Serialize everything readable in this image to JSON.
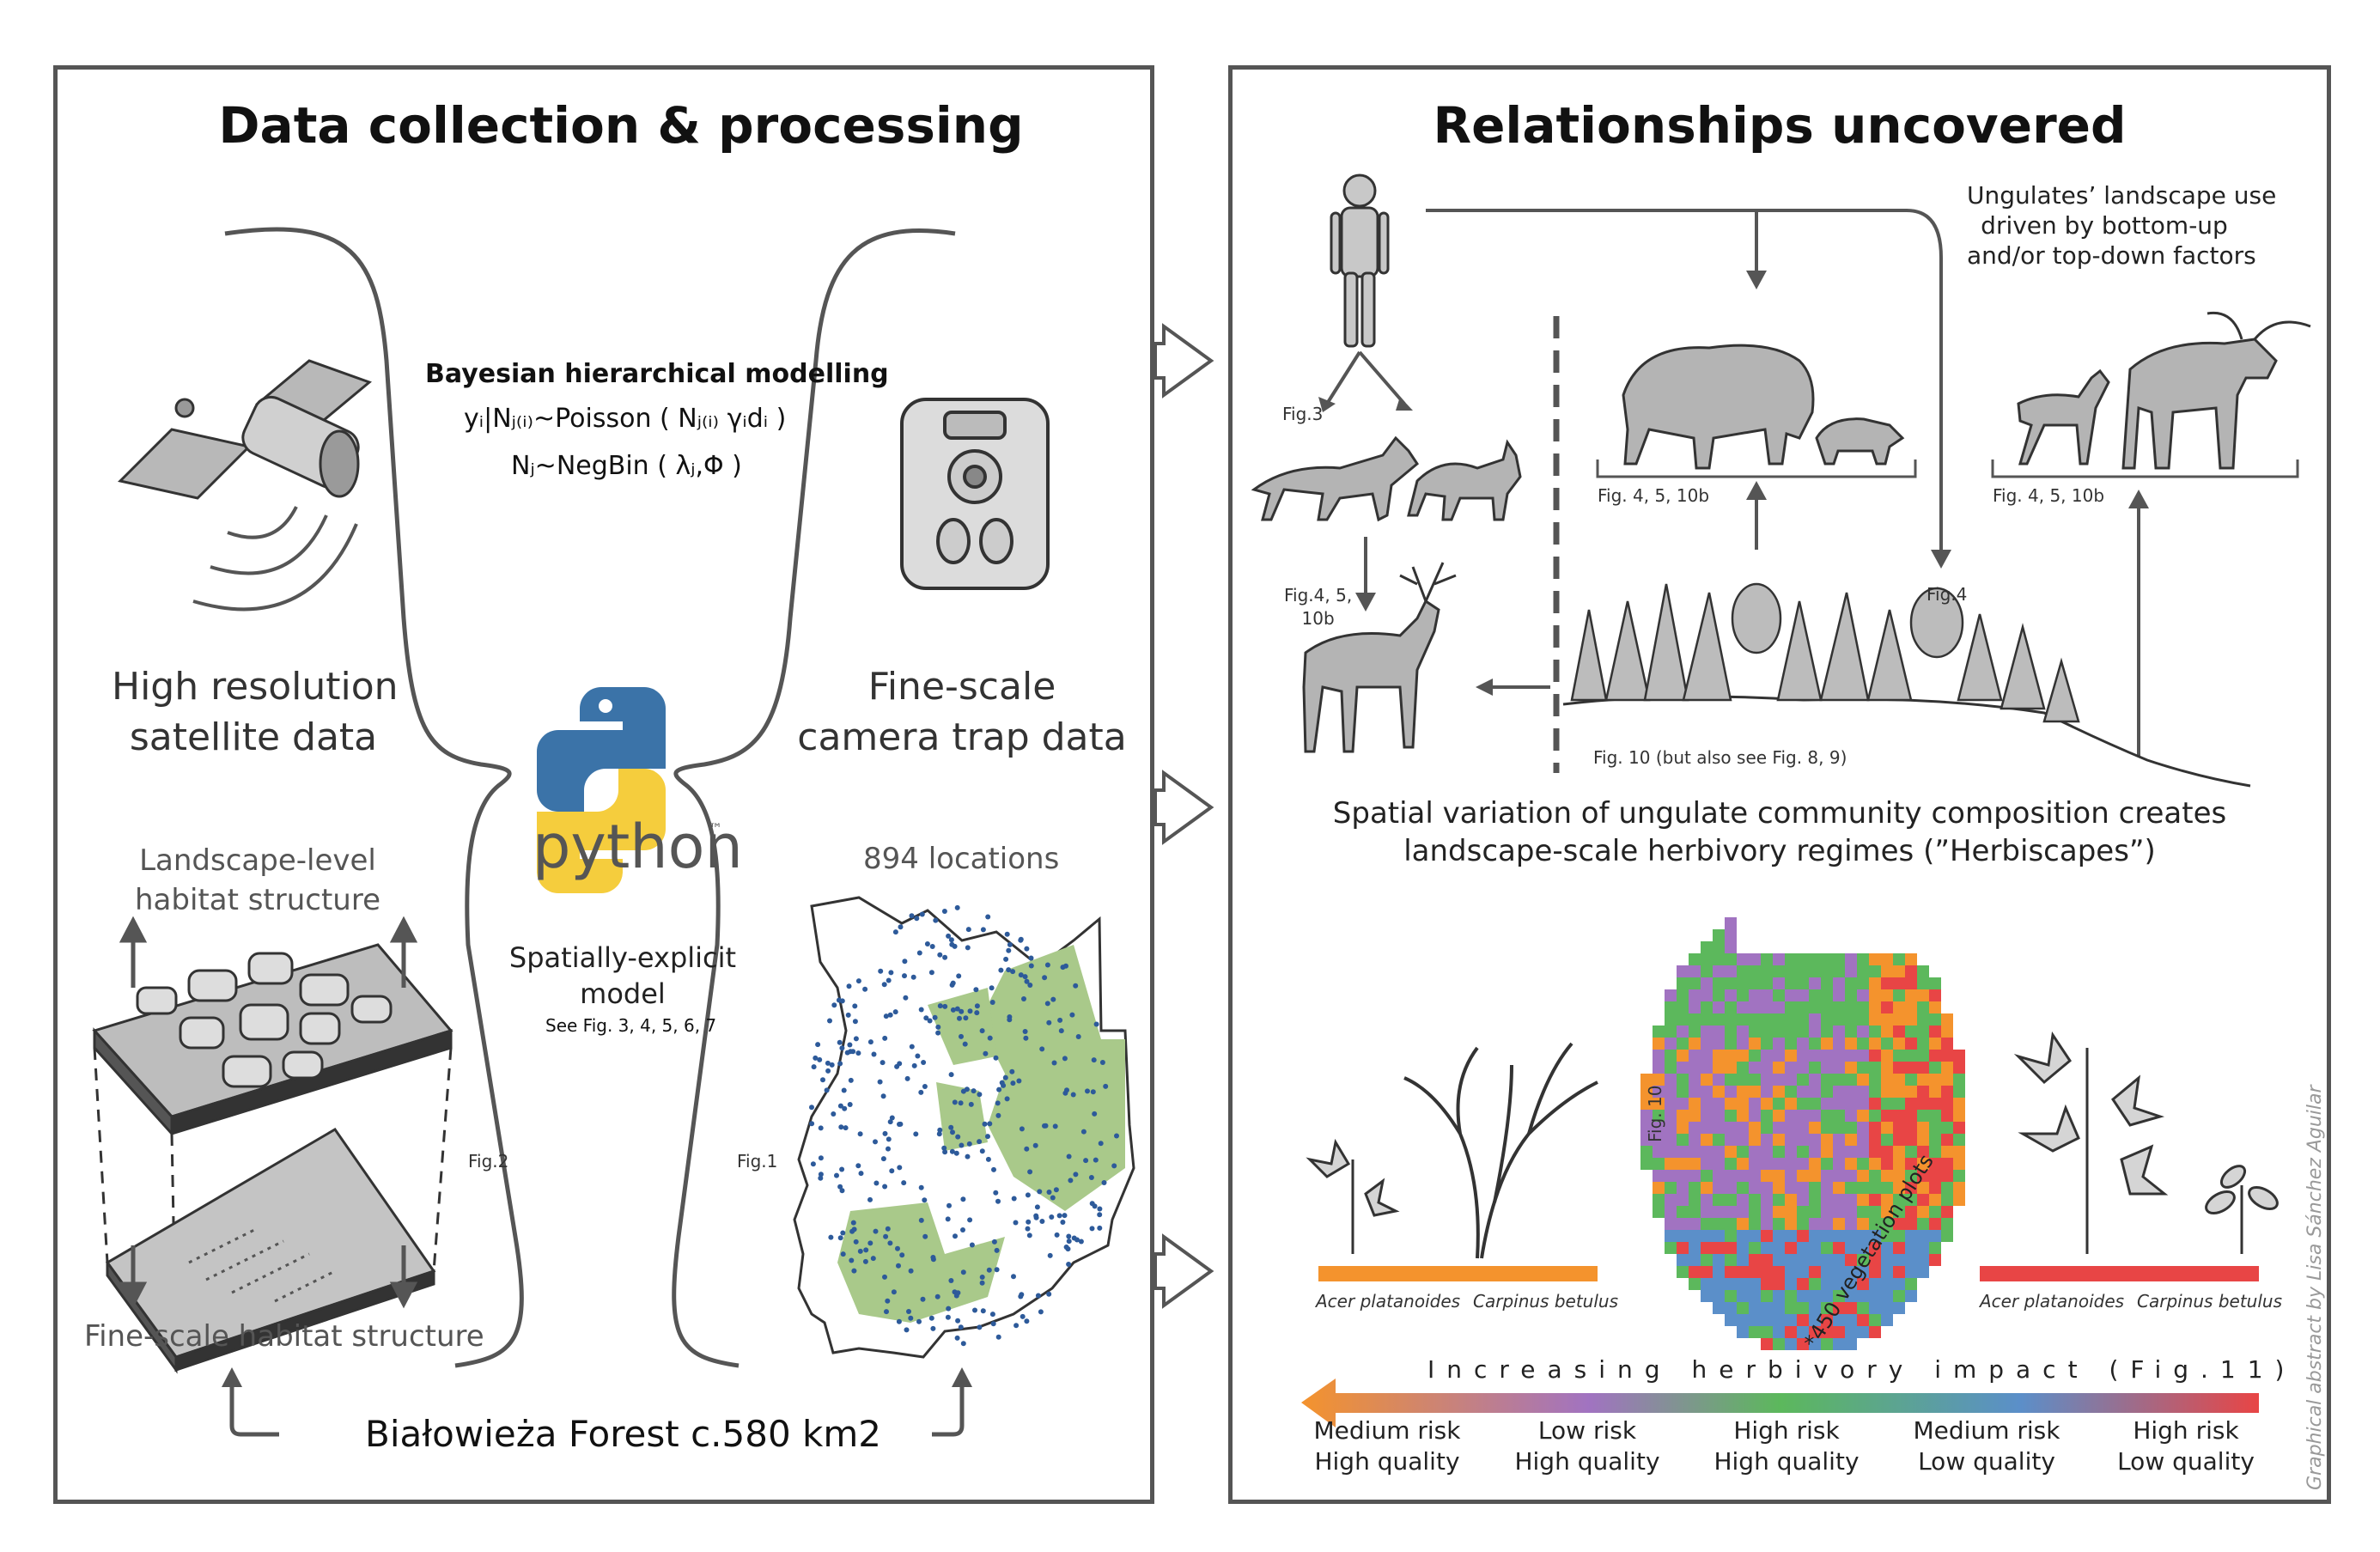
{
  "left_panel": {
    "title": "Data collection & processing",
    "model_heading": "Bayesian hierarchical modelling",
    "formula_1": "yᵢ|Nⱼ₍ᵢ₎~Poisson ( Nⱼ₍ᵢ₎ γᵢdᵢ )",
    "formula_2": "Nⱼ~NegBin ( λⱼ,Φ )",
    "satellite_label": [
      "High resolution",
      "satellite data"
    ],
    "camera_label": [
      "Fine-scale",
      "camera trap data"
    ],
    "python_label": "python",
    "python_tm": "™",
    "landscape_label": [
      "Landscape-level",
      "habitat structure"
    ],
    "fine_label": "Fine-scale habitat structure",
    "spatial_model": [
      "Spatially-explicit",
      "model"
    ],
    "see_figs": "See Fig. 3, 4, 5, 6, 7",
    "fig2": "Fig.2",
    "fig1": "Fig.1",
    "locations": "894 locations",
    "forest_label": "Białowieża Forest c.580 km2"
  },
  "right_panel": {
    "title": "Relationships uncovered",
    "ungulates_note": [
      "Ungulates’ landscape use",
      "driven by bottom-up",
      "and/or top-down factors"
    ],
    "fig3": "Fig.3",
    "fig4_5_10b_a": "Fig. 4, 5, 10b",
    "fig4_5_10b_b": "Fig. 4, 5, 10b",
    "fig4_5_10b_c": [
      "Fig.4, 5,",
      "10b"
    ],
    "fig4": "Fig.4",
    "fig10_note": "Fig. 10 (but also see Fig. 8, 9)",
    "herbiscape_caption": [
      "Spatial variation of ungulate community composition creates",
      "landscape-scale herbivory regimes (”Herbiscapes”)"
    ],
    "fig10_vertical": "Fig. 10",
    "vegetation_plots": "*450 vegetation plots",
    "species_left": [
      "Acer platanoides",
      "Carpinus betulus"
    ],
    "species_right": [
      "Acer platanoides",
      "Carpinus betulus"
    ],
    "impact_label": "Increasing herbivory impact (Fig.11)",
    "risk_categories": [
      [
        "Medium risk",
        "High quality"
      ],
      [
        "Low risk",
        "High quality"
      ],
      [
        "High risk",
        "High quality"
      ],
      [
        "Medium risk",
        "Low quality"
      ],
      [
        "High risk",
        "Low quality"
      ]
    ],
    "credit": "Graphical abstract by Lisa Sánchez Aguilar"
  },
  "colors": {
    "orange": "#f4932d",
    "purple": "#a173c1",
    "green": "#5cb85c",
    "blue": "#5b8fc9",
    "red": "#e84545",
    "map_green": "#a9c98a",
    "animal_grey": "#b4b4b4"
  }
}
